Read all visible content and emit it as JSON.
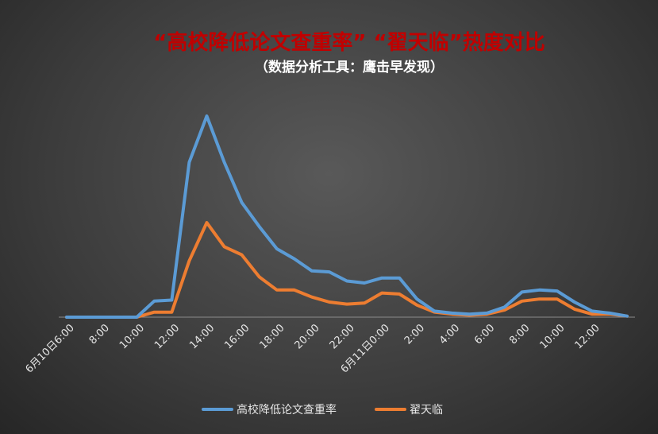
{
  "chart_data": {
    "type": "line",
    "title": "“高校降低论文查重率” “翟天临”热度对比",
    "subtitle": "（数据分析工具：鹰击早发现）",
    "x_tick_labels": [
      "6月10日6:00",
      "8:00",
      "10:00",
      "12:00",
      "14:00",
      "16:00",
      "18:00",
      "20:00",
      "22:00",
      "6月11日0:00",
      "2:00",
      "4:00",
      "6:00",
      "8:00",
      "10:00",
      "12:00"
    ],
    "ylim": [
      0,
      100
    ],
    "grid": false,
    "legend_position": "bottom",
    "series": [
      {
        "name": "高校降低论文查重率",
        "color": "#5B9BD5",
        "values": [
          0,
          0,
          0,
          0,
          0,
          8,
          8.5,
          77,
          100,
          77,
          57,
          45,
          34,
          29,
          23,
          22.5,
          18,
          17,
          19.5,
          19.5,
          9,
          3,
          2,
          1.5,
          2,
          5,
          12.5,
          13.5,
          13,
          7.5,
          3,
          2,
          0.5
        ]
      },
      {
        "name": "翟天临",
        "color": "#ED7D31",
        "values": [
          0,
          0,
          0,
          0,
          0,
          2.5,
          2.5,
          28,
          47,
          35,
          31,
          20,
          13.5,
          13.5,
          10,
          7.5,
          6.5,
          7,
          12,
          11.5,
          6,
          2.5,
          1.5,
          1,
          1.5,
          3.5,
          8,
          9,
          9,
          4,
          1.5,
          1.5,
          0.5
        ]
      }
    ]
  }
}
